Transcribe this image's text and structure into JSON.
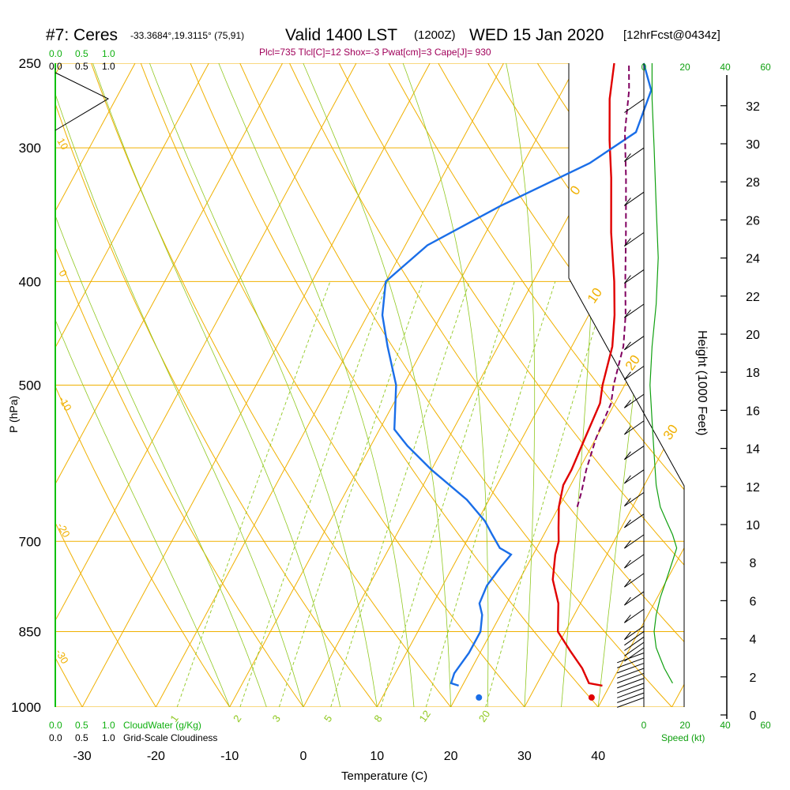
{
  "header": {
    "station": "#7: Ceres",
    "coords": "-33.3684°,19.3115° (75,91)",
    "valid": "Valid 1400 LST",
    "zulu": "(1200Z)",
    "date": "WED 15 Jan 2020",
    "fcst": "[12hrFcst@0434z]",
    "params": "Plcl=735 Tlcl[C]=12 Shox=-3 Pwat[cm]=3 Cape[J]= 930"
  },
  "colors": {
    "temp": "#e00000",
    "dewpoint": "#1a6ee8",
    "parcel": "#800060",
    "isotherm": "#f0b000",
    "dry_adiabat": "#f0b000",
    "moist_adiabat": "#90c820",
    "mixing_ratio": "#90c820",
    "green_text": "#10b010",
    "wind": "#000000",
    "speed": "#10a010"
  },
  "chart_data": {
    "type": "line",
    "title": "#7: Ceres  Valid 1400 LST (1200Z) WED 15 Jan 2020",
    "xlabel": "Temperature (C)",
    "ylabel": "P (hPa)",
    "y2label": "Height (1000 Feet)",
    "xlim": [
      -35,
      45
    ],
    "ylim_hpa": [
      1000,
      250
    ],
    "yscale": "log",
    "xticks": [
      "-30",
      "-20",
      "-10",
      "0",
      "10",
      "20",
      "30",
      "40"
    ],
    "pressure_ticks": [
      "250",
      "300",
      "400",
      "500",
      "700",
      "850",
      "1000"
    ],
    "height_ticks": [
      "0",
      "2",
      "4",
      "6",
      "8",
      "10",
      "12",
      "14",
      "16",
      "18",
      "20",
      "22",
      "24",
      "26",
      "28",
      "30",
      "32"
    ],
    "mixing_ratio_labels": [
      "1",
      "2",
      "3",
      "5",
      "8",
      "12",
      "20"
    ],
    "dry_adiabat_labels": [
      "0",
      "10",
      "20",
      "30"
    ],
    "left_adiabat_labels": [
      "10",
      "0",
      "-10",
      "-20",
      "-30"
    ],
    "series": [
      {
        "name": "Temperature",
        "points": [
          [
            39,
            955
          ],
          [
            37,
            950
          ],
          [
            35,
            920
          ],
          [
            32,
            885
          ],
          [
            29,
            850
          ],
          [
            27,
            800
          ],
          [
            24.5,
            760
          ],
          [
            23,
            720
          ],
          [
            22.5,
            700
          ],
          [
            21.5,
            680
          ],
          [
            20,
            650
          ],
          [
            19,
            620
          ],
          [
            19,
            600
          ],
          [
            18.5,
            560
          ],
          [
            18,
            520
          ],
          [
            17,
            500
          ],
          [
            15.5,
            460
          ],
          [
            13.5,
            430
          ],
          [
            11,
            400
          ],
          [
            7,
            360
          ],
          [
            3,
            320
          ],
          [
            0,
            295
          ],
          [
            -3,
            270
          ],
          [
            -5,
            250
          ]
        ]
      },
      {
        "name": "Dewpoint",
        "points": [
          [
            19.5,
            955
          ],
          [
            18.3,
            950
          ],
          [
            18,
            930
          ],
          [
            18.5,
            890
          ],
          [
            18.5,
            850
          ],
          [
            17.5,
            820
          ],
          [
            16.3,
            800
          ],
          [
            16,
            770
          ],
          [
            16.5,
            740
          ],
          [
            17,
            720
          ],
          [
            15,
            710
          ],
          [
            13,
            690
          ],
          [
            11,
            670
          ],
          [
            7,
            640
          ],
          [
            0,
            600
          ],
          [
            -5,
            570
          ],
          [
            -8,
            550
          ],
          [
            -11,
            500
          ],
          [
            -15,
            460
          ],
          [
            -18,
            430
          ],
          [
            -20,
            400
          ],
          [
            -17,
            370
          ],
          [
            -10,
            340
          ],
          [
            -1,
            310
          ],
          [
            3,
            290
          ],
          [
            2,
            265
          ],
          [
            -1,
            250
          ]
        ]
      },
      {
        "name": "Parcel",
        "points": [
          [
            22.5,
            650
          ],
          [
            22,
            630
          ],
          [
            21,
            600
          ],
          [
            20,
            560
          ],
          [
            19.5,
            520
          ],
          [
            18.5,
            500
          ],
          [
            17,
            460
          ],
          [
            15,
            430
          ],
          [
            12.5,
            400
          ],
          [
            9,
            360
          ],
          [
            5,
            320
          ],
          [
            1.5,
            290
          ],
          [
            -1,
            265
          ],
          [
            -3,
            250
          ]
        ]
      }
    ],
    "surface_dewpoint_marker": [
      23.5,
      955
    ],
    "surface_temp_marker": [
      39,
      955
    ],
    "left_panel": {
      "top_labels_green": [
        "0.0",
        "0.5",
        "1.0"
      ],
      "top_labels_black": [
        "0.0",
        "0.5",
        "1.0"
      ],
      "bottom_labels_green": [
        "0.0",
        "0.5",
        "1.0"
      ],
      "bottom_labels_black": [
        "0.0",
        "0.5",
        "1.0"
      ],
      "cloudwater_label": "CloudWater (g/Kg)",
      "cloudiness_label": "Grid-Scale Cloudiness"
    },
    "speed_panel": {
      "top_ticks": [
        "0",
        "20",
        "40",
        "60"
      ],
      "bottom_ticks": [
        "0",
        "20",
        "40",
        "60"
      ],
      "label": "Speed (kt)",
      "profile_kt_vs_hpa": [
        [
          14,
          950
        ],
        [
          10,
          920
        ],
        [
          8,
          900
        ],
        [
          6,
          880
        ],
        [
          5,
          850
        ],
        [
          6,
          820
        ],
        [
          8,
          790
        ],
        [
          11,
          760
        ],
        [
          14,
          730
        ],
        [
          16,
          710
        ],
        [
          14,
          690
        ],
        [
          11,
          670
        ],
        [
          8,
          650
        ],
        [
          6,
          620
        ],
        [
          5,
          580
        ],
        [
          4,
          540
        ],
        [
          3,
          500
        ],
        [
          4,
          460
        ],
        [
          6,
          420
        ],
        [
          7,
          380
        ],
        [
          6,
          340
        ],
        [
          5,
          300
        ],
        [
          4,
          270
        ],
        [
          4,
          250
        ]
      ]
    }
  }
}
